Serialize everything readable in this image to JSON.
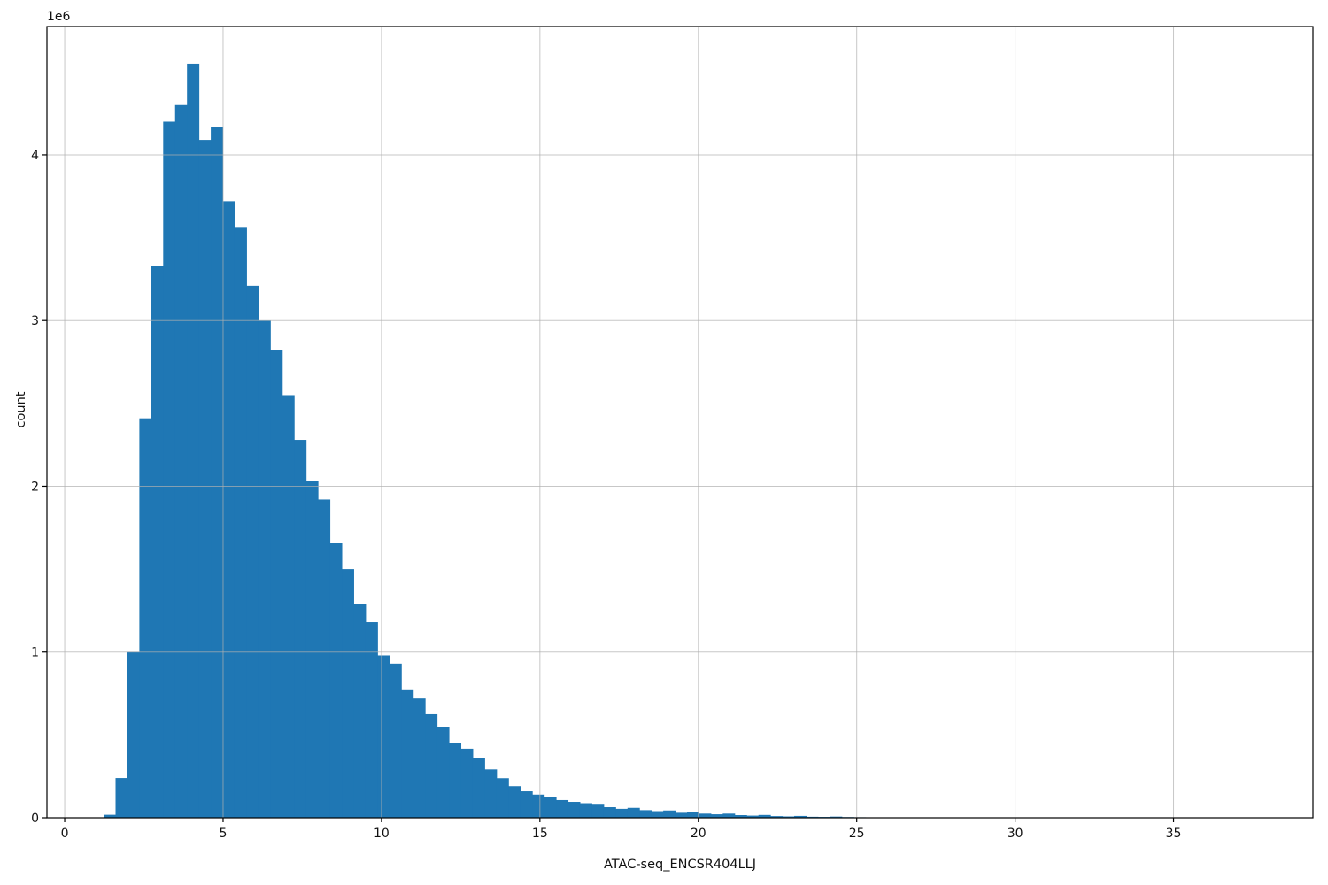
{
  "figure": {
    "background": "#ffffff"
  },
  "chart_data": {
    "type": "bar",
    "subtype": "histogram",
    "title": "",
    "xlabel": "ATAC-seq_ENCSR404LLJ",
    "ylabel": "count",
    "y_offset_label": "1e6",
    "legend": null,
    "grid": true,
    "grid_color": "#b0b0b0",
    "bar_color": "#1f77b4",
    "spine_color": "#000000",
    "text_color": "#111111",
    "xlim": [
      -0.56,
      39.4
    ],
    "ylim_millions": [
      0,
      4.774
    ],
    "x_ticks": [
      0,
      5,
      10,
      15,
      20,
      25,
      30,
      35
    ],
    "y_ticks_millions": [
      0,
      1,
      2,
      3,
      4
    ],
    "bin_start": 1.23,
    "bin_width": 0.3758,
    "counts_millions": [
      0.018,
      0.24,
      1.0,
      2.41,
      3.33,
      4.2,
      4.3,
      4.55,
      4.09,
      4.17,
      3.72,
      3.56,
      3.21,
      3.0,
      2.82,
      2.55,
      2.28,
      2.03,
      1.92,
      1.66,
      1.5,
      1.29,
      1.18,
      0.98,
      0.93,
      0.77,
      0.72,
      0.625,
      0.545,
      0.452,
      0.417,
      0.359,
      0.292,
      0.239,
      0.191,
      0.16,
      0.14,
      0.125,
      0.107,
      0.096,
      0.088,
      0.079,
      0.064,
      0.054,
      0.06,
      0.046,
      0.04,
      0.044,
      0.03,
      0.034,
      0.025,
      0.021,
      0.025,
      0.016,
      0.013,
      0.017,
      0.01,
      0.008,
      0.011,
      0.006,
      0.005,
      0.007,
      0.004,
      0.003
    ]
  }
}
